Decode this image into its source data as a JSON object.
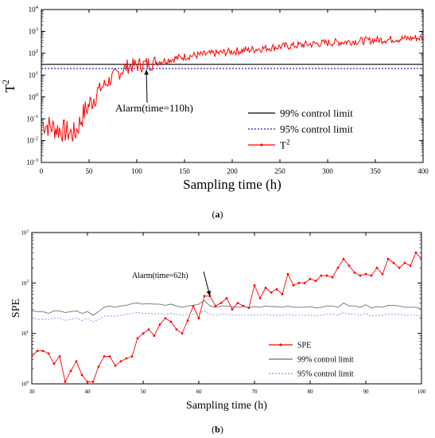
{
  "figure": {
    "caption_a": "a",
    "caption_b": "b"
  },
  "chart_data": [
    {
      "id": "a",
      "type": "line",
      "xlabel": "Sampling time (h)",
      "ylabel": "T",
      "ylabel_superscript": "2",
      "xlim": [
        0,
        400
      ],
      "ylim": [
        0.001,
        10000
      ],
      "yscale": "log",
      "x_ticks": [
        0,
        50,
        100,
        150,
        200,
        250,
        300,
        350,
        400
      ],
      "y_ticks": [
        {
          "value": 0.001,
          "base": "10",
          "exp": "-3"
        },
        {
          "value": 0.01,
          "base": "10",
          "exp": "-2"
        },
        {
          "value": 0.1,
          "base": "10",
          "exp": "-1"
        },
        {
          "value": 1,
          "base": "10",
          "exp": "0"
        },
        {
          "value": 10,
          "base": "10",
          "exp": "1"
        },
        {
          "value": 100,
          "base": "10",
          "exp": "2"
        },
        {
          "value": 1000,
          "base": "10",
          "exp": "3"
        },
        {
          "value": 10000,
          "base": "10",
          "exp": "4"
        }
      ],
      "grid": false,
      "legend_position": "bottom-right",
      "series": [
        {
          "name": "99% control limit",
          "kind": "hline",
          "value": 31,
          "color": "#000000",
          "dash": "none"
        },
        {
          "name": "95% control limit",
          "kind": "hline",
          "value": 20,
          "color": "#2222cc",
          "dash": "dotted"
        },
        {
          "name": "T",
          "name_superscript": "2",
          "kind": "noisy",
          "color": "#ff0000",
          "x_range": [
            1,
            400
          ],
          "anchors": [
            [
              1,
              0.06
            ],
            [
              20,
              0.03
            ],
            [
              35,
              0.02
            ],
            [
              45,
              0.2
            ],
            [
              60,
              2
            ],
            [
              75,
              8
            ],
            [
              90,
              25
            ],
            [
              110,
              32
            ],
            [
              150,
              70
            ],
            [
              200,
              120
            ],
            [
              250,
              200
            ],
            [
              300,
              300
            ],
            [
              350,
              400
            ],
            [
              400,
              520
            ]
          ]
        }
      ],
      "annotation": {
        "text": "Alarm(time=110h)",
        "x": 110,
        "y": 30
      }
    },
    {
      "id": "b",
      "type": "line",
      "xlabel": "Sampling time (h)",
      "ylabel": "SPE",
      "xlim": [
        30,
        100
      ],
      "ylim": [
        1,
        1000
      ],
      "yscale": "log",
      "x_ticks": [
        30,
        40,
        50,
        60,
        70,
        80,
        90,
        100
      ],
      "y_ticks": [
        {
          "value": 1,
          "base": "10",
          "exp": "0"
        },
        {
          "value": 10,
          "base": "10",
          "exp": "1"
        },
        {
          "value": 100,
          "base": "10",
          "exp": "2"
        },
        {
          "value": 1000,
          "base": "10",
          "exp": "3"
        }
      ],
      "grid": false,
      "legend_position": "bottom-right",
      "series": [
        {
          "name": "SPE",
          "kind": "points",
          "color": "#ff0000",
          "marker": "dot",
          "x": [
            30,
            31,
            32,
            33,
            34,
            35,
            36,
            37,
            38,
            39,
            40,
            41,
            42,
            43,
            44,
            45,
            46,
            47,
            48,
            49,
            50,
            51,
            52,
            53,
            54,
            55,
            56,
            57,
            58,
            59,
            60,
            61,
            62,
            63,
            64,
            65,
            66,
            67,
            68,
            69,
            70,
            71,
            72,
            73,
            74,
            75,
            76,
            77,
            78,
            79,
            80,
            81,
            82,
            83,
            84,
            85,
            86,
            87,
            88,
            89,
            90,
            91,
            92,
            93,
            94,
            95,
            96,
            97,
            98,
            99,
            100
          ],
          "y": [
            3.5,
            4.5,
            4.5,
            4.0,
            2.5,
            3.5,
            1.1,
            1.8,
            2.8,
            1.5,
            1.1,
            1.1,
            2.2,
            3.5,
            3.5,
            2.3,
            2.8,
            3.2,
            3.5,
            8,
            10,
            12,
            9,
            15,
            20,
            17,
            12,
            10,
            18,
            35,
            20,
            55,
            55,
            35,
            40,
            50,
            30,
            40,
            35,
            32,
            90,
            50,
            80,
            65,
            75,
            60,
            150,
            90,
            100,
            100,
            120,
            110,
            140,
            140,
            130,
            200,
            300,
            220,
            160,
            140,
            150,
            140,
            200,
            150,
            300,
            250,
            200,
            250,
            220,
            400,
            300
          ]
        },
        {
          "name": "99% control limit",
          "kind": "line",
          "color": "#707070",
          "x": [
            30,
            31,
            32,
            33,
            34,
            35,
            36,
            37,
            38,
            39,
            40,
            41,
            42,
            43,
            44,
            45,
            46,
            47,
            48,
            49,
            50,
            51,
            52,
            53,
            54,
            55,
            56,
            57,
            58,
            59,
            60,
            61,
            62,
            63,
            64,
            65,
            66,
            67,
            68,
            69,
            70,
            71,
            72,
            73,
            74,
            75,
            76,
            77,
            78,
            79,
            80,
            81,
            82,
            83,
            84,
            85,
            86,
            87,
            88,
            89,
            90,
            91,
            92,
            93,
            94,
            95,
            96,
            97,
            98,
            99,
            100
          ],
          "y": [
            28,
            27,
            27,
            25,
            28,
            28,
            26,
            27,
            28,
            25,
            27,
            23,
            27,
            33,
            35,
            33,
            35,
            36,
            39,
            40,
            38,
            39,
            38,
            38,
            36,
            38,
            35,
            33,
            35,
            36,
            38,
            45,
            35,
            33,
            35,
            35,
            34,
            33,
            34,
            33,
            34,
            33,
            35,
            34,
            34,
            33,
            35,
            33,
            33,
            33,
            34,
            32,
            33,
            35,
            35,
            33,
            40,
            35,
            35,
            33,
            37,
            32,
            34,
            33,
            36,
            36,
            35,
            33,
            33,
            33,
            30
          ]
        },
        {
          "name": "95% control limit",
          "kind": "line",
          "color": "#8888ff",
          "dash": "dotted",
          "x": [
            30,
            31,
            32,
            33,
            34,
            35,
            36,
            37,
            38,
            39,
            40,
            41,
            42,
            43,
            44,
            45,
            46,
            47,
            48,
            49,
            50,
            51,
            52,
            53,
            54,
            55,
            56,
            57,
            58,
            59,
            60,
            61,
            62,
            63,
            64,
            65,
            66,
            67,
            68,
            69,
            70,
            71,
            72,
            73,
            74,
            75,
            76,
            77,
            78,
            79,
            80,
            81,
            82,
            83,
            84,
            85,
            86,
            87,
            88,
            89,
            90,
            91,
            92,
            93,
            94,
            95,
            96,
            97,
            98,
            99,
            100
          ],
          "y": [
            20,
            19,
            19,
            19,
            20,
            20,
            18,
            19,
            20,
            18,
            20,
            17,
            19,
            22,
            22,
            22,
            23,
            24,
            25,
            26,
            25,
            25,
            24,
            25,
            24,
            25,
            24,
            23,
            24,
            24,
            25,
            28,
            24,
            23,
            24,
            24,
            23,
            23,
            23,
            23,
            23,
            23,
            24,
            23,
            23,
            23,
            24,
            23,
            23,
            23,
            23,
            22,
            23,
            24,
            24,
            23,
            26,
            24,
            24,
            23,
            25,
            22,
            23,
            23,
            24,
            24,
            24,
            23,
            23,
            23,
            22
          ]
        }
      ],
      "annotation": {
        "text": "Alarm(time=62h)",
        "x": 62,
        "y": 55
      }
    }
  ]
}
